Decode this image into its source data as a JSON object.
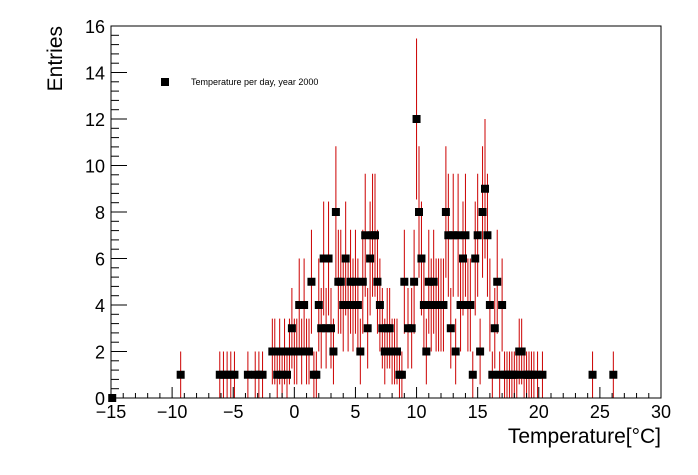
{
  "chart_data": {
    "type": "scatter",
    "title": "",
    "xlabel": "Temperature[°C]",
    "ylabel": "Entries",
    "xlim": [
      -15,
      30
    ],
    "ylim": [
      0,
      16
    ],
    "x_major_ticks": [
      -15,
      -10,
      -5,
      0,
      5,
      10,
      15,
      20,
      25,
      30
    ],
    "y_major_ticks": [
      0,
      2,
      4,
      6,
      8,
      10,
      12,
      14,
      16
    ],
    "grid": false,
    "legend_position": "top-left",
    "marker_color": "#000000",
    "error_bar_color": "#cc0000",
    "series": [
      {
        "name": "Temperature per day, year 2000",
        "x": [
          -14.9,
          -9.3,
          -6.1,
          -5.8,
          -5.5,
          -5.2,
          -4.9,
          -3.8,
          -3.2,
          -2.9,
          -2.6,
          -1.8,
          -1.6,
          -1.4,
          -1.2,
          -1.0,
          -0.8,
          -0.6,
          -0.4,
          -0.2,
          0.0,
          0.2,
          0.4,
          0.6,
          0.8,
          1.0,
          1.2,
          1.4,
          1.6,
          1.8,
          2.0,
          2.2,
          2.4,
          2.6,
          2.8,
          3.0,
          3.2,
          3.4,
          3.6,
          3.8,
          4.0,
          4.2,
          4.4,
          4.6,
          4.8,
          5.0,
          5.2,
          5.4,
          5.6,
          5.8,
          6.0,
          6.2,
          6.4,
          6.6,
          6.8,
          7.0,
          7.2,
          7.4,
          7.6,
          7.8,
          8.0,
          8.2,
          8.4,
          8.6,
          8.8,
          9.0,
          9.3,
          9.6,
          9.8,
          10.0,
          10.2,
          10.4,
          10.6,
          10.8,
          11.0,
          11.2,
          11.4,
          11.6,
          11.8,
          12.0,
          12.2,
          12.4,
          12.6,
          12.8,
          13.0,
          13.2,
          13.4,
          13.6,
          13.8,
          14.0,
          14.2,
          14.4,
          14.6,
          14.8,
          15.0,
          15.2,
          15.4,
          15.6,
          15.8,
          16.0,
          16.2,
          16.4,
          16.6,
          16.8,
          17.0,
          17.2,
          17.4,
          17.6,
          17.8,
          18.0,
          18.2,
          18.4,
          18.6,
          18.8,
          19.0,
          19.2,
          19.4,
          19.6,
          19.9,
          20.3,
          24.4,
          26.1
        ],
        "values": [
          0,
          1,
          1,
          1,
          1,
          1,
          1,
          1,
          1,
          1,
          1,
          2,
          2,
          1,
          2,
          1,
          2,
          1,
          2,
          3,
          2,
          2,
          4,
          2,
          4,
          2,
          2,
          5,
          1,
          1,
          4,
          3,
          6,
          3,
          6,
          3,
          2,
          8,
          5,
          5,
          4,
          6,
          4,
          5,
          4,
          5,
          4,
          2,
          5,
          7,
          3,
          6,
          7,
          7,
          5,
          4,
          3,
          2,
          3,
          3,
          2,
          2,
          2,
          1,
          1,
          5,
          3,
          3,
          5,
          12,
          8,
          6,
          4,
          2,
          5,
          4,
          5,
          4,
          4,
          4,
          4,
          8,
          7,
          3,
          7,
          2,
          7,
          4,
          6,
          7,
          4,
          4,
          1,
          6,
          7,
          2,
          8,
          9,
          7,
          4,
          1,
          3,
          5,
          1,
          4,
          1,
          1,
          1,
          1,
          1,
          1,
          2,
          2,
          1,
          1,
          1,
          1,
          1,
          1,
          1,
          1,
          1
        ]
      }
    ]
  }
}
